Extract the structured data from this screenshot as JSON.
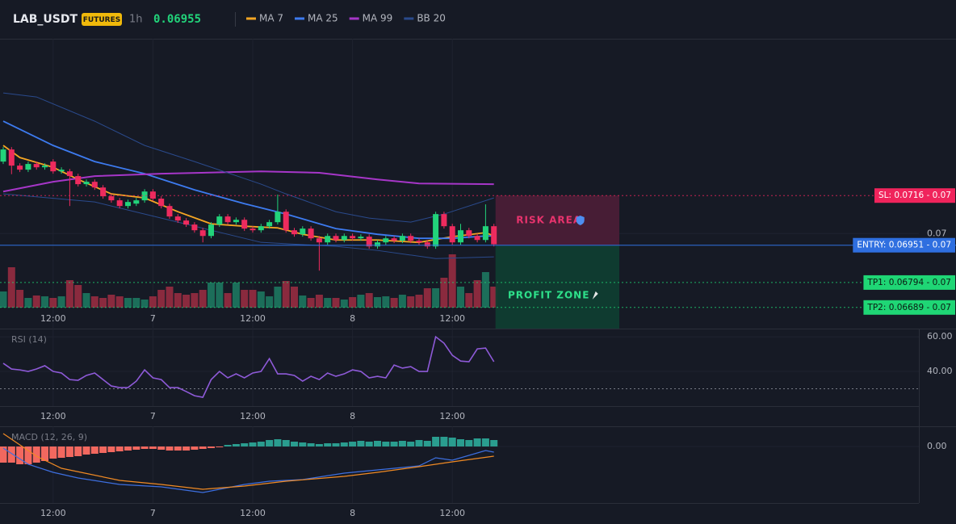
{
  "header": {
    "symbol": "LAB_USDT",
    "badge": "FUTURES",
    "interval": "1h",
    "price": "0.06955"
  },
  "chart_data": [
    {
      "type": "candlestick",
      "categories": [
        null,
        null,
        null,
        null,
        null,
        null,
        "12:00",
        null,
        null,
        null,
        null,
        null,
        null,
        null,
        null,
        null,
        null,
        null,
        "7",
        null,
        null,
        null,
        null,
        null,
        null,
        null,
        null,
        null,
        null,
        null,
        "12:00",
        null,
        null,
        null,
        null,
        null,
        null,
        null,
        null,
        null,
        null,
        null,
        "8",
        null,
        null,
        null,
        null,
        null,
        null,
        null,
        null,
        null,
        null,
        null,
        "12:00",
        null,
        null,
        null,
        null,
        null
      ],
      "open": [
        0.07303,
        0.07354,
        0.07286,
        0.07269,
        0.07293,
        0.07279,
        0.07303,
        0.07262,
        0.07262,
        0.07242,
        0.07208,
        0.07218,
        0.07194,
        0.07157,
        0.0714,
        0.07116,
        0.07126,
        0.0714,
        0.07177,
        0.07147,
        0.07116,
        0.07072,
        0.07055,
        0.07038,
        0.07014,
        0.0699,
        0.07038,
        0.07072,
        0.07048,
        0.07058,
        0.07021,
        0.07014,
        0.07031,
        0.07048,
        0.07092,
        0.07014,
        0.06997,
        0.07021,
        0.0698,
        0.06963,
        0.0699,
        0.06973,
        0.0699,
        0.0698,
        0.06987,
        0.06946,
        0.06963,
        0.0698,
        0.0697,
        0.0699,
        0.0697,
        0.06963,
        0.06946,
        0.07082,
        0.07031,
        0.06963,
        0.07014,
        0.0699,
        0.06973,
        0.07031
      ],
      "high": [
        0.07364,
        0.07364,
        0.07296,
        0.07303,
        0.07303,
        0.07296,
        0.07313,
        0.07279,
        0.07272,
        0.07252,
        0.07228,
        0.07228,
        0.07204,
        0.07167,
        0.0715,
        0.07143,
        0.0715,
        0.07187,
        0.07187,
        0.07157,
        0.07126,
        0.07082,
        0.07065,
        0.07048,
        0.07024,
        0.07048,
        0.07082,
        0.07082,
        0.07068,
        0.07068,
        0.07031,
        0.07041,
        0.07058,
        0.07164,
        0.07102,
        0.07024,
        0.07031,
        0.07031,
        0.0699,
        0.07,
        0.07,
        0.07,
        0.07,
        0.06997,
        0.06997,
        0.06973,
        0.0699,
        0.0699,
        0.07,
        0.07,
        0.0698,
        0.06973,
        0.07092,
        0.07092,
        0.07041,
        0.07041,
        0.07024,
        0.07,
        0.07123,
        0.07041
      ],
      "low": [
        0.07293,
        0.0725,
        0.07259,
        0.07259,
        0.07269,
        0.07269,
        0.07252,
        0.07252,
        0.07116,
        0.07198,
        0.07198,
        0.07184,
        0.07147,
        0.0713,
        0.07106,
        0.07106,
        0.07116,
        0.0713,
        0.07137,
        0.07106,
        0.07062,
        0.07045,
        0.07028,
        0.07004,
        0.06963,
        0.0698,
        0.07028,
        0.07038,
        0.07038,
        0.07011,
        0.07004,
        0.07004,
        0.07021,
        0.07038,
        0.07004,
        0.06987,
        0.06987,
        0.0697,
        0.06844,
        0.06953,
        0.06963,
        0.06963,
        0.0697,
        0.0697,
        0.06936,
        0.06936,
        0.06953,
        0.0696,
        0.0696,
        0.0696,
        0.06953,
        0.06936,
        0.06936,
        0.07021,
        0.06953,
        0.06953,
        0.0698,
        0.06963,
        0.06963,
        0.06946
      ],
      "close": [
        0.07354,
        0.07286,
        0.07269,
        0.07293,
        0.07279,
        0.07286,
        0.07262,
        0.07269,
        0.07242,
        0.07208,
        0.07218,
        0.07194,
        0.07157,
        0.0714,
        0.07116,
        0.07133,
        0.0714,
        0.07177,
        0.07147,
        0.07116,
        0.07072,
        0.07055,
        0.07038,
        0.07014,
        0.0699,
        0.07038,
        0.07072,
        0.07048,
        0.07058,
        0.07021,
        0.07014,
        0.07031,
        0.07048,
        0.07092,
        0.07014,
        0.06997,
        0.07021,
        0.0698,
        0.06963,
        0.0699,
        0.06973,
        0.0699,
        0.0698,
        0.06987,
        0.06946,
        0.06963,
        0.0698,
        0.0697,
        0.0699,
        0.0697,
        0.06963,
        0.06946,
        0.07082,
        0.07031,
        0.06963,
        0.07014,
        0.0699,
        0.06973,
        0.07031,
        0.06955
      ],
      "up_color": "#22d37a",
      "down_color": "#ee2b5e",
      "volume": {
        "values": [
          20,
          50,
          22,
          12,
          15,
          14,
          12,
          14,
          34,
          28,
          18,
          14,
          12,
          16,
          14,
          12,
          12,
          10,
          14,
          22,
          26,
          18,
          16,
          18,
          22,
          31,
          31,
          18,
          31,
          22,
          22,
          20,
          14,
          26,
          33,
          26,
          15,
          12,
          16,
          12,
          12,
          10,
          13,
          16,
          18,
          13,
          14,
          12,
          16,
          14,
          16,
          24,
          24,
          37,
          66,
          26,
          18,
          34,
          44,
          26
        ],
        "ylim": [
          0,
          80
        ],
        "up_color": "#1c6e5a",
        "down_color": "#8a2a3e"
      },
      "series": [
        {
          "name": "MA 7",
          "color": "#f5a623",
          "x": [
            0,
            2,
            6,
            9,
            13,
            17,
            21,
            25,
            29,
            33,
            36,
            40,
            45,
            50,
            54,
            58,
            59
          ],
          "values": [
            0.07371,
            0.0732,
            0.07279,
            0.07228,
            0.07167,
            0.0715,
            0.07092,
            0.07041,
            0.07031,
            0.07024,
            0.06997,
            0.06973,
            0.06973,
            0.06963,
            0.06987,
            0.07004,
            0.0699
          ]
        },
        {
          "name": "MA 25",
          "color": "#3d7bf0",
          "x": [
            0,
            6,
            11,
            17,
            23,
            29,
            34,
            40,
            45,
            50,
            54,
            58,
            59
          ],
          "values": [
            0.07473,
            0.07371,
            0.07303,
            0.07252,
            0.07184,
            0.07126,
            0.07082,
            0.07021,
            0.06997,
            0.0698,
            0.0698,
            0.0699,
            0.0699
          ]
        },
        {
          "name": "MA 99",
          "color": "#a636c8",
          "x": [
            0,
            6,
            11,
            19,
            31,
            38,
            45,
            50,
            59
          ],
          "values": [
            0.07177,
            0.07218,
            0.07242,
            0.07252,
            0.07262,
            0.07256,
            0.07228,
            0.07211,
            0.07208
          ]
        },
        {
          "name": "BB 20",
          "color": "#2a4a8c",
          "upper": {
            "x": [
              0,
              4,
              11,
              17,
              23,
              31,
              34,
              40,
              44,
              49,
              53,
              59
            ],
            "values": [
              0.07592,
              0.07575,
              0.07473,
              0.07371,
              0.07303,
              0.07208,
              0.07167,
              0.07092,
              0.07065,
              0.07048,
              0.07082,
              0.0715
            ]
          },
          "lower": {
            "x": [
              0,
              11,
              17,
              23,
              31,
              40,
              45,
              52,
              59
            ],
            "values": [
              0.07167,
              0.07133,
              0.07082,
              0.07031,
              0.06963,
              0.06946,
              0.06929,
              0.06895,
              0.06902
            ]
          }
        }
      ],
      "levels": [
        {
          "value": 0.0716,
          "label": "SL: 0.0716 - 0.07",
          "color": "#f0245c",
          "style": "dotted"
        },
        {
          "value": 0.06951,
          "label": "ENTRY: 0.06951 - 0.07",
          "color": "#2f6fe0",
          "style": "solid"
        },
        {
          "value": 0.06794,
          "label": "TP1: 0.06794 - 0.07",
          "color": "#1fd675",
          "style": "dotted"
        },
        {
          "value": 0.06689,
          "label": "TP2: 0.06689 - 0.07",
          "color": "#1fd675",
          "style": "dotted"
        }
      ],
      "zones": [
        {
          "label": "RISK AREA",
          "color": "#4a1d36",
          "text_color": "#e8336d"
        },
        {
          "label": "PROFIT ZONE",
          "color": "#0f3d30",
          "text_color": "#2ee08a"
        }
      ],
      "ylim": [
        0.066,
        0.0782
      ],
      "yticks": [
        0.07
      ],
      "grid": true
    },
    {
      "type": "line",
      "title": "RSI (14)",
      "categories": [
        null,
        null,
        null,
        null,
        null,
        null,
        "12:00",
        null,
        null,
        null,
        null,
        null,
        null,
        null,
        null,
        null,
        null,
        null,
        "7",
        null,
        null,
        null,
        null,
        null,
        null,
        null,
        null,
        null,
        null,
        null,
        "12:00",
        null,
        null,
        null,
        null,
        null,
        null,
        null,
        null,
        null,
        null,
        null,
        "8",
        null,
        null,
        null,
        null,
        null,
        null,
        null,
        null,
        null,
        null,
        null,
        "12:00",
        null,
        null,
        null,
        null,
        null
      ],
      "values": [
        44.7,
        41.4,
        40.9,
        40,
        41.4,
        43.3,
        40,
        39.1,
        35.3,
        34.9,
        37.7,
        39.1,
        35.3,
        31.6,
        30.7,
        30.7,
        34.4,
        40.9,
        36.3,
        35.3,
        30.7,
        30.7,
        28.4,
        26,
        25.1,
        35.3,
        40,
        36.3,
        38.6,
        36.3,
        39.1,
        40,
        47.4,
        38.6,
        38.6,
        37.7,
        34.4,
        37.2,
        35.3,
        39.1,
        37.2,
        38.6,
        40.9,
        40,
        36.3,
        37.2,
        36.3,
        43.7,
        41.9,
        42.8,
        40,
        40,
        60,
        56.3,
        49.3,
        46,
        45.6,
        53,
        53.5,
        45.6
      ],
      "color": "#8e5ad8",
      "bands": [
        30
      ],
      "ylim": [
        20,
        64.7
      ],
      "yticks": [
        {
          "value": 60,
          "label": "60.00"
        },
        {
          "value": 40,
          "label": "40.00"
        }
      ],
      "grid": true
    },
    {
      "type": "bar",
      "title": "MACD (12, 26, 9)",
      "categories": [
        null,
        null,
        null,
        null,
        null,
        null,
        "12:00",
        null,
        null,
        null,
        null,
        null,
        null,
        null,
        null,
        null,
        null,
        null,
        "7",
        null,
        null,
        null,
        null,
        null,
        null,
        null,
        null,
        null,
        null,
        null,
        "12:00",
        null,
        null,
        null,
        null,
        null,
        null,
        null,
        null,
        null,
        null,
        null,
        "8",
        null,
        null,
        null,
        null,
        null,
        null,
        null,
        null,
        null,
        null,
        null,
        "12:00",
        null,
        null,
        null,
        null,
        null
      ],
      "values": [
        -0.0002,
        -0.0002,
        -0.00022,
        -0.00022,
        -0.0002,
        -0.00018,
        -0.00015,
        -0.00014,
        -0.00013,
        -0.00012,
        -0.0001,
        -9e-05,
        -8e-05,
        -7e-05,
        -6e-05,
        -5e-05,
        -4e-05,
        -3e-05,
        -3e-05,
        -4e-05,
        -5e-05,
        -5e-05,
        -5e-05,
        -4e-05,
        -3e-05,
        -2e-05,
        -1e-05,
        2e-05,
        3e-05,
        4e-05,
        5e-05,
        6e-05,
        8e-05,
        9e-05,
        8e-05,
        6e-05,
        5e-05,
        4e-05,
        3e-05,
        4e-05,
        4e-05,
        5e-05,
        6e-05,
        7e-05,
        6e-05,
        7e-05,
        6e-05,
        6e-05,
        7e-05,
        6e-05,
        8e-05,
        7e-05,
        0.00012,
        0.00012,
        0.00011,
        9e-05,
        8e-05,
        0.0001,
        0.0001,
        8e-05
      ],
      "positive_color": "#2a9d8f",
      "negative_color": "#f2685f",
      "series": [
        {
          "color": "#3d6fe0",
          "x": [
            0,
            3,
            6,
            9,
            14,
            19,
            24,
            26,
            29,
            32,
            36,
            41,
            45,
            50,
            52,
            54,
            58,
            59
          ],
          "values": [
            -2e-05,
            -0.00022,
            -0.00032,
            -0.00039,
            -0.00047,
            -0.0005,
            -0.00057,
            -0.00053,
            -0.00047,
            -0.00043,
            -0.00041,
            -0.00033,
            -0.00029,
            -0.00024,
            -0.00014,
            -0.00017,
            -5e-05,
            -7e-05
          ]
        },
        {
          "color": "#f08a24",
          "x": [
            0,
            4,
            7,
            14,
            19,
            24,
            29,
            34,
            41,
            45,
            50,
            54,
            59
          ],
          "values": [
            0.00016,
            -0.00012,
            -0.00027,
            -0.00042,
            -0.00047,
            -0.00053,
            -0.00049,
            -0.00043,
            -0.00037,
            -0.00032,
            -0.00025,
            -0.00019,
            -0.00012
          ]
        }
      ],
      "ylim": [
        -0.0007,
        0.00025
      ],
      "yticks": [
        {
          "value": 0,
          "label": "0.00"
        }
      ],
      "grid": true
    }
  ]
}
